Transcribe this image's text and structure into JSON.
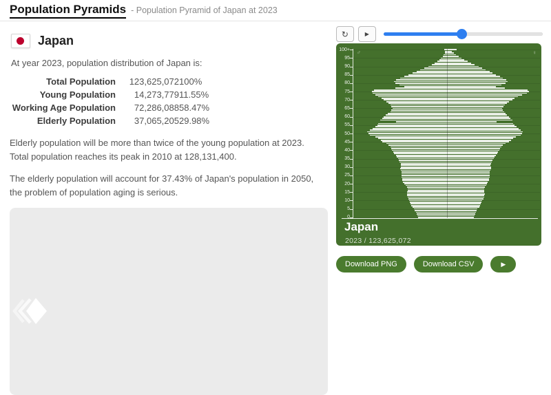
{
  "header": {
    "title": "Population Pyramids",
    "subtitle": "- Population Pyramid of Japan at 2023"
  },
  "country": {
    "name": "Japan",
    "intro": "At year 2023, population distribution of Japan is:"
  },
  "stats": {
    "rows": [
      {
        "label": "Total Population",
        "value": "123,625,072",
        "pct": "100%"
      },
      {
        "label": "Young Population",
        "value": "14,273,779",
        "pct": "11.55%"
      },
      {
        "label": "Working Age Population",
        "value": "72,286,088",
        "pct": "58.47%"
      },
      {
        "label": "Elderly Population",
        "value": "37,065,205",
        "pct": "29.98%"
      }
    ]
  },
  "paragraphs": {
    "p1": "Elderly population will be more than twice of the young population at 2023. Total population reaches its peak in 2010 at 128,131,400.",
    "p2": "The elderly population will account for 37.43% of Japan's population in 2050, the problem of population aging is serious."
  },
  "controls": {
    "reset_icon": "↻",
    "play_icon": "▶",
    "slider_value_pct": 49
  },
  "chart": {
    "title": "Japan",
    "subtitle": "2023 / 123,625,072",
    "male_symbol": "♂",
    "female_symbol": "♀"
  },
  "chart_data": {
    "type": "bar",
    "subtype": "population-pyramid",
    "title": "Japan",
    "year_label": "2023 / 123,625,072",
    "orientation": "horizontal, male left / female right, age 0 bottom to 100+ top",
    "age_ticks": [
      "0",
      "5",
      "10",
      "15",
      "20",
      "25",
      "30",
      "35",
      "40",
      "45",
      "50",
      "55",
      "60",
      "65",
      "70",
      "75",
      "80",
      "85",
      "90",
      "95",
      "100+"
    ],
    "unit": "thousands per single year of age (estimated from bar lengths)",
    "scale_max": 1250,
    "series": [
      {
        "name": "male",
        "values": [
          390,
          400,
          410,
          420,
          430,
          440,
          460,
          480,
          490,
          500,
          510,
          520,
          530,
          535,
          540,
          535,
          530,
          530,
          540,
          560,
          575,
          590,
          600,
          605,
          615,
          610,
          610,
          615,
          625,
          630,
          625,
          620,
          625,
          640,
          650,
          660,
          675,
          690,
          710,
          725,
          740,
          750,
          765,
          785,
          820,
          870,
          895,
          925,
          965,
          1040,
          1060,
          1075,
          1045,
          1000,
          965,
          940,
          925,
          690,
          900,
          875,
          850,
          825,
          795,
          765,
          750,
          735,
          750,
          765,
          790,
          815,
          855,
          880,
          925,
          965,
          1000,
          1010,
          985,
          700,
          575,
          640,
          695,
          715,
          685,
          630,
          575,
          520,
          465,
          410,
          355,
          300,
          250,
          205,
          165,
          130,
          100,
          75,
          55,
          40,
          28,
          19,
          30
        ]
      },
      {
        "name": "female",
        "values": [
          370,
          380,
          390,
          400,
          410,
          420,
          440,
          455,
          465,
          475,
          485,
          495,
          505,
          510,
          515,
          510,
          505,
          505,
          515,
          535,
          550,
          560,
          570,
          575,
          585,
          580,
          580,
          585,
          595,
          600,
          600,
          595,
          600,
          615,
          625,
          635,
          650,
          665,
          685,
          700,
          715,
          725,
          740,
          760,
          795,
          845,
          870,
          900,
          940,
          1000,
          1020,
          1035,
          1005,
          975,
          945,
          920,
          905,
          680,
          890,
          865,
          845,
          820,
          795,
          775,
          765,
          755,
          770,
          790,
          815,
          845,
          890,
          920,
          970,
          1020,
          1090,
          1120,
          1095,
          790,
          665,
          745,
          800,
          830,
          810,
          765,
          720,
          670,
          625,
          580,
          530,
          480,
          430,
          380,
          330,
          285,
          240,
          200,
          160,
          125,
          95,
          70,
          140
        ]
      }
    ],
    "colors": {
      "panel_bg": "#44702c",
      "bar": "#f2f5ee",
      "button_green": "#4a7b2e",
      "slider_blue": "#2e7ff0"
    }
  },
  "actions": {
    "download_png": "Download PNG",
    "download_csv": "Download CSV",
    "play_icon": "▶"
  }
}
